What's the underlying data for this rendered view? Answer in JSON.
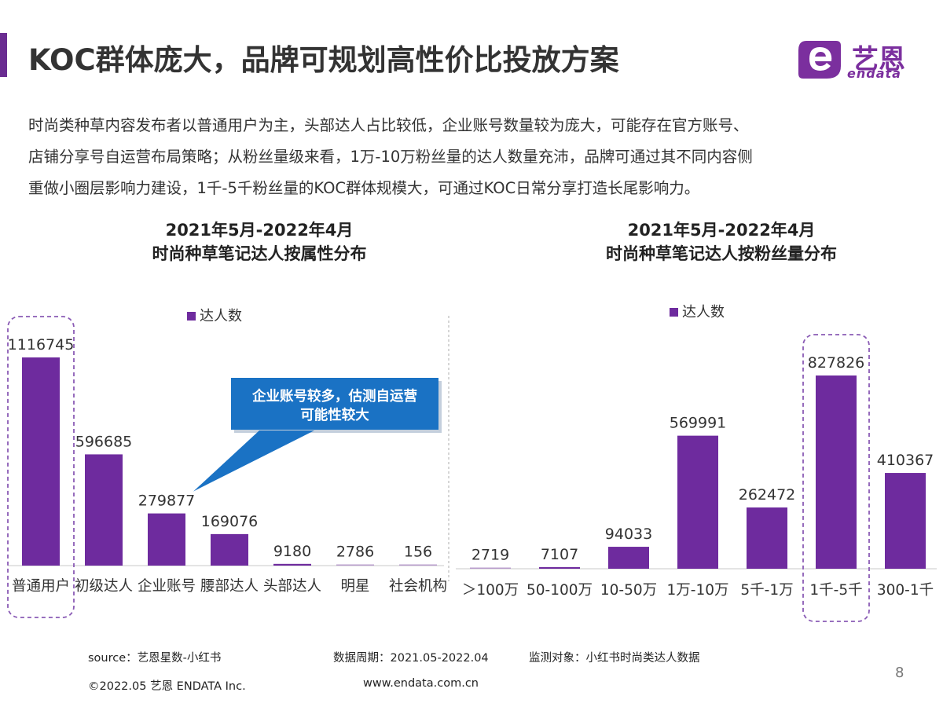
{
  "header": {
    "title": "KOC群体庞大，品牌可规划高性价比投放方案",
    "accent_color": "#6a2c91",
    "logo": {
      "text": "艺恩",
      "sub": "endata",
      "color": "#7b2f9e",
      "icon": "endata-logo-icon"
    }
  },
  "description": [
    "时尚类种草内容发布者以普通用户为主，头部达人占比较低，企业账号数量较为庞大，可能存在官方账号、",
    "店铺分享号自运营布局策略；从粉丝量级来看，1万-10万粉丝量的达人数量充沛，品牌可通过其不同内容侧",
    "重做小圈层影响力建设，1千-5千粉丝量的KOC群体规模大，可通过KOC日常分享打造长尾影响力。"
  ],
  "chart_data": [
    {
      "type": "bar",
      "title": [
        "2021年5月-2022年4月",
        "时尚种草笔记达人按属性分布"
      ],
      "categories": [
        "普通用户",
        "初级达人",
        "企业账号",
        "腰部达人",
        "头部达人",
        "明星",
        "社会机构"
      ],
      "series": [
        {
          "name": "达人数",
          "values": [
            1116745,
            596685,
            279877,
            169076,
            9180,
            2786,
            156
          ]
        }
      ],
      "bar_color": "#6e2b9e",
      "legend_position": "top",
      "highlight_index": 0,
      "callout": {
        "lines": [
          "企业账号较多，估测自运营",
          "可能性较大"
        ],
        "target_index": 2,
        "color": "#1a72c4"
      }
    },
    {
      "type": "bar",
      "title": [
        "2021年5月-2022年4月",
        "时尚种草笔记达人按粉丝量分布"
      ],
      "categories": [
        "＞100万",
        "50-100万",
        "10-50万",
        "1万-10万",
        "5千-1万",
        "1千-5千",
        "300-1千"
      ],
      "series": [
        {
          "name": "达人数",
          "values": [
            2719,
            7107,
            94033,
            569991,
            262472,
            827826,
            410367
          ]
        }
      ],
      "bar_color": "#6e2b9e",
      "legend_position": "top",
      "highlight_index": 5
    }
  ],
  "footer": {
    "source": "source：艺恩星数-小红书",
    "period": "数据周期：2021.05-2022.04",
    "target": "监测对象：小红书时尚类达人数据",
    "copyright": "©2022.05 艺恩 ENDATA Inc.",
    "website": "www.endata.com.cn",
    "page": "8"
  }
}
